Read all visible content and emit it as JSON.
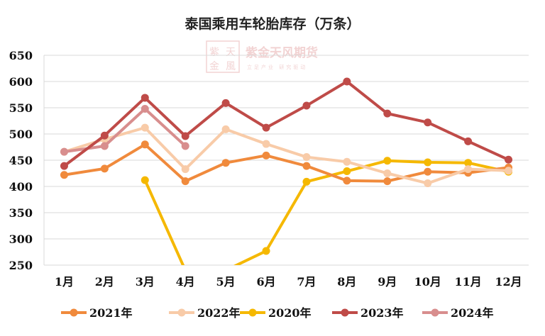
{
  "chart_data": {
    "type": "line",
    "title": "泰国乘用车轮胎库存（万条）",
    "categories": [
      "1月",
      "2月",
      "3月",
      "4月",
      "5月",
      "6月",
      "7月",
      "8月",
      "9月",
      "10月",
      "11月",
      "12月"
    ],
    "ylim": [
      250,
      650
    ],
    "yticks": [
      250,
      300,
      350,
      400,
      450,
      500,
      550,
      600,
      650
    ],
    "grid": true,
    "legend_position": "bottom",
    "series": [
      {
        "name": "2021年",
        "color": "#f08a3c",
        "values": [
          422,
          434,
          480,
          410,
          445,
          459,
          439,
          411,
          410,
          428,
          426,
          436
        ]
      },
      {
        "name": "2022年",
        "color": "#f8cba8",
        "values": [
          466,
          490,
          512,
          433,
          509,
          481,
          456,
          447,
          425,
          406,
          433,
          430
        ]
      },
      {
        "name": "2020年",
        "color": "#f5b800",
        "values": [
          null,
          null,
          412,
          240,
          240,
          277,
          409,
          429,
          449,
          446,
          445,
          428
        ]
      },
      {
        "name": "2023年",
        "color": "#bf4b48",
        "values": [
          439,
          497,
          569,
          496,
          559,
          512,
          554,
          600,
          539,
          522,
          486,
          451
        ]
      },
      {
        "name": "2024年",
        "color": "#d88e8e",
        "values": [
          466,
          477,
          548,
          477,
          null,
          null,
          null,
          null,
          null,
          null,
          null,
          null
        ]
      }
    ]
  },
  "watermark": {
    "logo_chars": [
      "紫",
      "天",
      "金",
      "風"
    ],
    "name": "紫金天风期货",
    "slogan": "立足产业 研究驱动"
  }
}
